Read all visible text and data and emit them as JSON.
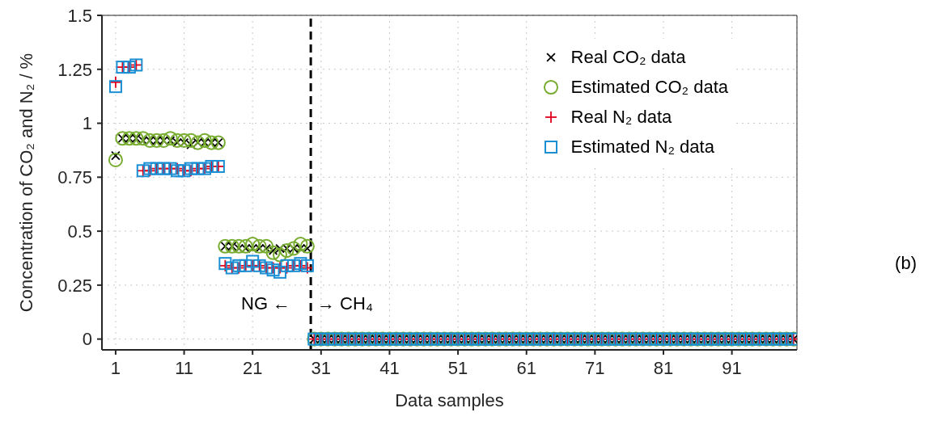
{
  "chart_data": {
    "type": "scatter",
    "xlabel": "Data samples",
    "ylabel": "Concentration of CO₂ and N₂ / %",
    "x": [
      1,
      2,
      3,
      4,
      5,
      6,
      7,
      8,
      9,
      10,
      11,
      12,
      13,
      14,
      15,
      16,
      17,
      18,
      19,
      20,
      21,
      22,
      23,
      24,
      25,
      26,
      27,
      28,
      29,
      30,
      31,
      32,
      33,
      34,
      35,
      36,
      37,
      38,
      39,
      40,
      41,
      42,
      43,
      44,
      45,
      46,
      47,
      48,
      49,
      50,
      51,
      52,
      53,
      54,
      55,
      56,
      57,
      58,
      59,
      60,
      61,
      62,
      63,
      64,
      65,
      66,
      67,
      68,
      69,
      70,
      71,
      72,
      73,
      74,
      75,
      76,
      77,
      78,
      79,
      80,
      81,
      82,
      83,
      84,
      85,
      86,
      87,
      88,
      89,
      90,
      91,
      92,
      93,
      94,
      95,
      96,
      97,
      98,
      99,
      100
    ],
    "series": [
      {
        "name": "Real CO₂ data",
        "color": "#000000",
        "marker": "cross",
        "values": [
          0.85,
          0.93,
          0.93,
          0.93,
          0.92,
          0.92,
          0.92,
          0.92,
          0.92,
          0.91,
          0.91,
          0.9,
          0.91,
          0.91,
          0.91,
          0.91,
          0.43,
          0.43,
          0.42,
          0.42,
          0.42,
          0.42,
          0.42,
          0.41,
          0.42,
          0.42,
          0.42,
          0.42,
          0.42,
          0,
          0,
          0,
          0,
          0,
          0,
          0,
          0,
          0,
          0,
          0,
          0,
          0,
          0,
          0,
          0,
          0,
          0,
          0,
          0,
          0,
          0,
          0,
          0,
          0,
          0,
          0,
          0,
          0,
          0,
          0,
          0,
          0,
          0,
          0,
          0,
          0,
          0,
          0,
          0,
          0,
          0,
          0,
          0,
          0,
          0,
          0,
          0,
          0,
          0,
          0,
          0,
          0,
          0,
          0,
          0,
          0,
          0,
          0,
          0,
          0,
          0,
          0,
          0,
          0,
          0,
          0,
          0,
          0,
          0,
          0
        ]
      },
      {
        "name": "Estimated CO₂ data",
        "color": "#77ac30",
        "marker": "circle",
        "values": [
          0.83,
          0.93,
          0.93,
          0.93,
          0.93,
          0.92,
          0.92,
          0.92,
          0.93,
          0.92,
          0.92,
          0.92,
          0.91,
          0.92,
          0.91,
          0.91,
          0.43,
          0.43,
          0.43,
          0.43,
          0.44,
          0.43,
          0.43,
          0.4,
          0.39,
          0.41,
          0.42,
          0.44,
          0.43,
          0,
          0,
          0,
          0,
          0,
          0,
          0,
          0,
          0,
          0,
          0,
          0,
          0,
          0,
          0,
          0,
          0,
          0,
          0,
          0,
          0,
          0,
          0,
          0,
          0,
          0,
          0,
          0,
          0,
          0,
          0,
          0,
          0,
          0,
          0,
          0,
          0,
          0,
          0,
          0,
          0,
          0,
          0,
          0,
          0,
          0,
          0,
          0,
          0,
          0,
          0,
          0,
          0,
          0,
          0,
          0,
          0,
          0,
          0,
          0,
          0,
          0,
          0,
          0,
          0,
          0,
          0,
          0,
          0,
          0,
          0
        ]
      },
      {
        "name": "Real N₂ data",
        "color": "#e3001b",
        "marker": "plus",
        "values": [
          1.19,
          1.26,
          1.26,
          1.27,
          0.78,
          0.78,
          0.79,
          0.79,
          0.79,
          0.79,
          0.78,
          0.78,
          0.79,
          0.79,
          0.8,
          0.8,
          0.34,
          0.33,
          0.33,
          0.34,
          0.34,
          0.34,
          0.33,
          0.33,
          0.33,
          0.33,
          0.34,
          0.34,
          0.33,
          0,
          0,
          0,
          0,
          0,
          0,
          0,
          0,
          0,
          0,
          0,
          0,
          0,
          0,
          0,
          0,
          0,
          0,
          0,
          0,
          0,
          0,
          0,
          0,
          0,
          0,
          0,
          0,
          0,
          0,
          0,
          0,
          0,
          0,
          0,
          0,
          0,
          0,
          0,
          0,
          0,
          0,
          0,
          0,
          0,
          0,
          0,
          0,
          0,
          0,
          0,
          0,
          0,
          0,
          0,
          0,
          0,
          0,
          0,
          0,
          0,
          0,
          0,
          0,
          0,
          0,
          0,
          0,
          0,
          0,
          0
        ]
      },
      {
        "name": "Estimated N₂ data",
        "color": "#1a8fd4",
        "marker": "square",
        "values": [
          1.17,
          1.26,
          1.26,
          1.27,
          0.78,
          0.79,
          0.79,
          0.79,
          0.79,
          0.78,
          0.78,
          0.79,
          0.79,
          0.79,
          0.8,
          0.8,
          0.35,
          0.33,
          0.34,
          0.34,
          0.36,
          0.34,
          0.33,
          0.32,
          0.31,
          0.34,
          0.34,
          0.35,
          0.34,
          0,
          0,
          0,
          0,
          0,
          0,
          0,
          0,
          0,
          0,
          0,
          0,
          0,
          0,
          0,
          0,
          0,
          0,
          0,
          0,
          0,
          0,
          0,
          0,
          0,
          0,
          0,
          0,
          0,
          0,
          0,
          0,
          0,
          0,
          0,
          0,
          0,
          0,
          0,
          0,
          0,
          0,
          0,
          0,
          0,
          0,
          0,
          0,
          0,
          0,
          0,
          0,
          0,
          0,
          0,
          0,
          0,
          0,
          0,
          0,
          0,
          0,
          0,
          0,
          0,
          0,
          0,
          0,
          0,
          0,
          0
        ]
      }
    ],
    "xlim": [
      -1,
      100.5
    ],
    "xticks": [
      1,
      11,
      21,
      31,
      41,
      51,
      61,
      71,
      81,
      91
    ],
    "ylim": [
      -0.05,
      1.5
    ],
    "yticks": [
      0,
      0.25,
      0.5,
      0.75,
      1,
      1.25,
      1.5
    ],
    "grid": true,
    "legend": "top right",
    "ref_lines": [
      {
        "axis": "x",
        "value": 29.5,
        "color": "#000000",
        "line_style": "dashed"
      }
    ],
    "annotations": [
      "NG ←",
      "→ CH₄",
      "(b)"
    ]
  }
}
